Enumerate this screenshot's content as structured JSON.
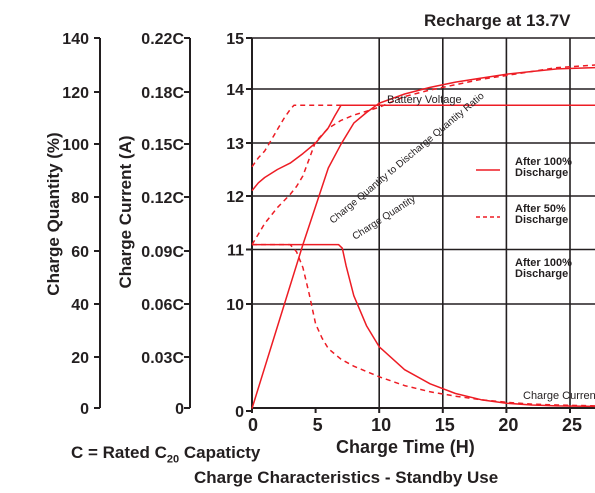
{
  "header": {
    "title": "Recharge at 13.7V"
  },
  "footer": {
    "capacity_prefix": "C = Rated C",
    "capacity_sub": "20",
    "capacity_suffix": " Capaticty",
    "caption": "Charge Characteristics - Standby Use"
  },
  "chart_data": {
    "type": "line",
    "title": "Recharge at 13.7V",
    "xlabel": "Charge Time (H)",
    "x_ticks": [
      "0",
      "5",
      "10",
      "15",
      "20",
      "25"
    ],
    "xlim": [
      0,
      26
    ],
    "axes": [
      {
        "key": "quantity",
        "label": "Charge Quantity (%)",
        "ticks": [
          "0",
          "20",
          "40",
          "60",
          "80",
          "100",
          "120",
          "140"
        ],
        "range": [
          0,
          140
        ]
      },
      {
        "key": "current",
        "label": "Charge Current (A)",
        "ticks": [
          "0",
          "0.03C",
          "0.06C",
          "0.09C",
          "0.12C",
          "0.15C",
          "0.18C",
          "0.22C"
        ]
      },
      {
        "key": "voltage",
        "label": "",
        "ticks": [
          "0",
          "10",
          "11",
          "12",
          "13",
          "14",
          "15"
        ]
      }
    ],
    "grid": true,
    "legend": {
      "placement": "right",
      "entries": [
        {
          "label_lines": [
            "After 100%",
            "Discharge"
          ],
          "style": "solid"
        },
        {
          "label_lines": [
            "After 50%",
            "Discharge"
          ],
          "style": "dashed"
        },
        {
          "label_lines": [
            "After 100%",
            "Discharge"
          ],
          "style": "none"
        }
      ]
    },
    "series": [
      {
        "name": "Battery Voltage",
        "axis": "voltage",
        "style": "solid",
        "x": [
          0,
          0.5,
          1,
          2,
          3,
          4,
          5,
          6,
          6.5,
          7,
          26
        ],
        "y": [
          12.1,
          12.25,
          12.35,
          12.5,
          12.62,
          12.8,
          13.0,
          13.28,
          13.5,
          13.7,
          13.7
        ]
      },
      {
        "name": "",
        "axis": "voltage",
        "style": "dashed",
        "x": [
          0,
          0.5,
          1,
          1.5,
          2,
          2.5,
          3,
          3.3,
          26
        ],
        "y": [
          12.55,
          12.72,
          12.85,
          13.05,
          13.25,
          13.45,
          13.62,
          13.7,
          13.7
        ]
      },
      {
        "name": "Charge Quantity to Discharge Quantity Ratio",
        "axis": "quantity",
        "style": "solid",
        "x": [
          0,
          2,
          4,
          6,
          7,
          8,
          9,
          10,
          12,
          14,
          16,
          18,
          20,
          22,
          24,
          26
        ],
        "y": [
          0,
          31,
          62,
          91,
          100,
          108,
          112,
          115.5,
          119,
          121.5,
          123.5,
          125,
          126.5,
          127.5,
          128.5,
          129
        ]
      },
      {
        "name": "",
        "axis": "quantity",
        "style": "dashed",
        "x": [
          0,
          0.5,
          1,
          2,
          3,
          3.5,
          4,
          5,
          6,
          7,
          8,
          9,
          10,
          12,
          14,
          16,
          18,
          20,
          22,
          24,
          26
        ],
        "y": [
          62,
          66,
          70,
          76,
          81,
          84,
          88,
          101,
          106,
          109,
          111,
          112.5,
          114,
          118,
          120.5,
          122.5,
          124.5,
          126,
          127.5,
          129,
          130
        ]
      },
      {
        "name": "Charge Quantity",
        "axis": "quantity",
        "style": "none",
        "x": [],
        "y": []
      },
      {
        "name": "Charge Current",
        "axis": "current",
        "style": "solid",
        "x": [
          0,
          6.8,
          7.1,
          7.4,
          8,
          9,
          10,
          12,
          14,
          16,
          18,
          20,
          22,
          24,
          26
        ],
        "y": [
          0.093,
          0.093,
          0.091,
          0.081,
          0.064,
          0.047,
          0.035,
          0.022,
          0.014,
          0.0085,
          0.005,
          0.003,
          0.002,
          0.0015,
          0.0012
        ]
      },
      {
        "name": "",
        "axis": "current",
        "style": "dashed",
        "x": [
          0,
          1,
          2,
          3,
          3.5,
          4,
          4.5,
          5,
          5.5,
          6,
          7,
          8,
          10,
          12,
          14,
          16,
          18,
          20,
          22,
          24,
          26
        ],
        "y": [
          0.093,
          0.093,
          0.093,
          0.093,
          0.089,
          0.08,
          0.065,
          0.048,
          0.04,
          0.034,
          0.028,
          0.024,
          0.018,
          0.013,
          0.0095,
          0.007,
          0.005,
          0.0035,
          0.0025,
          0.002,
          0.0015
        ]
      }
    ]
  }
}
